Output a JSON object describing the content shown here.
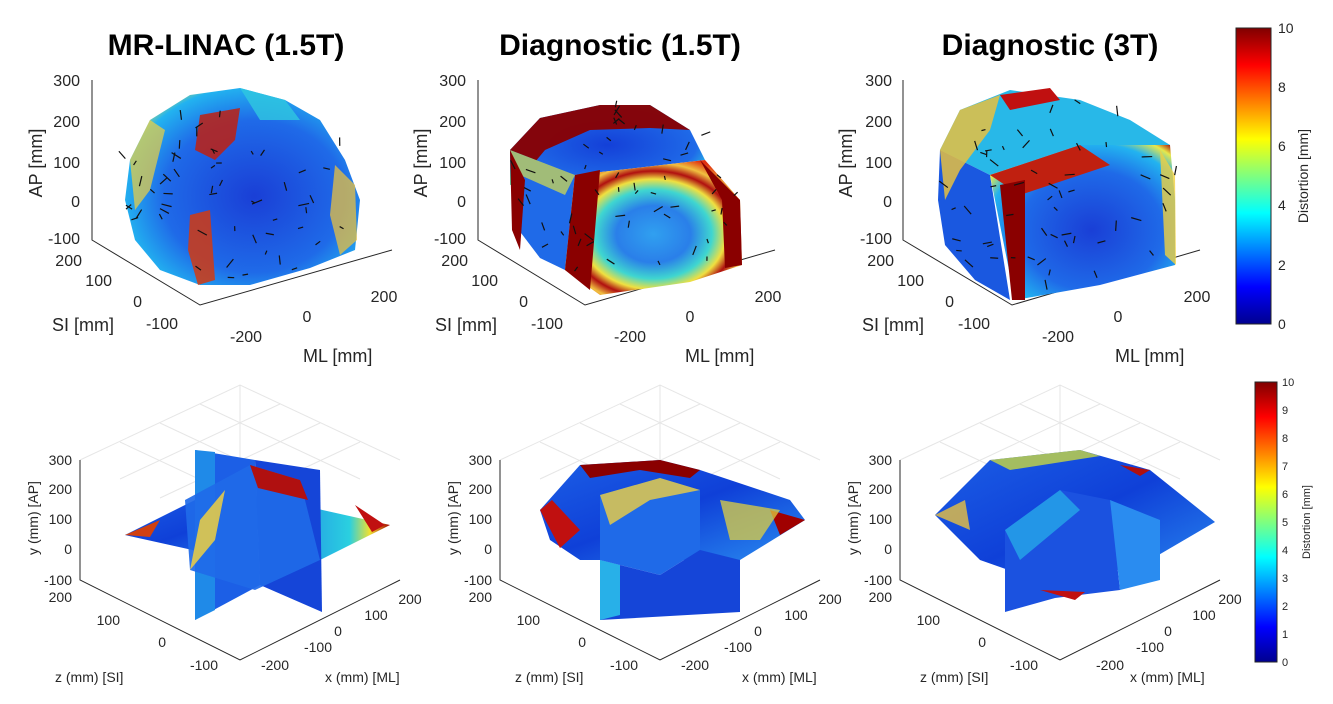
{
  "chart_data": [
    {
      "type": "heatmap",
      "title": "MR-LINAC (1.5T)",
      "zlabel": "AP [mm]",
      "ylabel": "SI [mm]",
      "xlabel": "ML [mm]",
      "z_ticks": [
        "300",
        "200",
        "100",
        "0",
        "-100"
      ],
      "y_ticks": [
        "200",
        "100",
        "0",
        "-100"
      ],
      "x_ticks": [
        "-200",
        "0",
        "200"
      ],
      "colorbar": {
        "label": "Distortion [mm]",
        "range": [
          0,
          10
        ],
        "ticks": [
          "0",
          "2",
          "4",
          "6",
          "8",
          "10"
        ]
      }
    },
    {
      "type": "heatmap",
      "title": "Diagnostic (1.5T)",
      "zlabel": "AP [mm]",
      "ylabel": "SI [mm]",
      "xlabel": "ML [mm]",
      "z_ticks": [
        "300",
        "200",
        "100",
        "0",
        "-100"
      ],
      "y_ticks": [
        "200",
        "100",
        "0",
        "-100"
      ],
      "x_ticks": [
        "-200",
        "0",
        "200"
      ]
    },
    {
      "type": "heatmap",
      "title": "Diagnostic (3T)",
      "zlabel": "AP [mm]",
      "ylabel": "SI [mm]",
      "xlabel": "ML [mm]",
      "z_ticks": [
        "300",
        "200",
        "100",
        "0",
        "-100"
      ],
      "y_ticks": [
        "200",
        "100",
        "0",
        "-100"
      ],
      "x_ticks": [
        "-200",
        "0",
        "200"
      ]
    },
    {
      "type": "heatmap",
      "zlabel": "y (mm) [AP]",
      "ylabel": "z (mm) [SI]",
      "xlabel": "x (mm) [ML]",
      "z_ticks": [
        "300",
        "200",
        "100",
        "0",
        "-100"
      ],
      "y_ticks": [
        "200",
        "100",
        "0",
        "-100"
      ],
      "x_ticks": [
        "-200",
        "-100",
        "0",
        "100",
        "200"
      ],
      "colorbar": {
        "label": "Distortion [mm]",
        "range": [
          0,
          10
        ],
        "ticks": [
          "0",
          "1",
          "2",
          "3",
          "4",
          "5",
          "6",
          "7",
          "8",
          "9",
          "10"
        ]
      }
    },
    {
      "type": "heatmap",
      "zlabel": "y (mm) [AP]",
      "ylabel": "z (mm) [SI]",
      "xlabel": "x (mm) [ML]",
      "z_ticks": [
        "300",
        "200",
        "100",
        "0",
        "-100"
      ],
      "y_ticks": [
        "200",
        "100",
        "0",
        "-100"
      ],
      "x_ticks": [
        "-200",
        "-100",
        "0",
        "100",
        "200"
      ]
    },
    {
      "type": "heatmap",
      "zlabel": "y (mm) [AP]",
      "ylabel": "z (mm) [SI]",
      "xlabel": "x (mm) [ML]",
      "z_ticks": [
        "300",
        "200",
        "100",
        "0",
        "-100"
      ],
      "y_ticks": [
        "200",
        "100",
        "0",
        "-100"
      ],
      "x_ticks": [
        "-200",
        "-100",
        "0",
        "100",
        "200"
      ]
    }
  ],
  "colors": {
    "jet_low": "#00008f",
    "jet_mid": "#7fff7f",
    "jet_high": "#800000"
  }
}
